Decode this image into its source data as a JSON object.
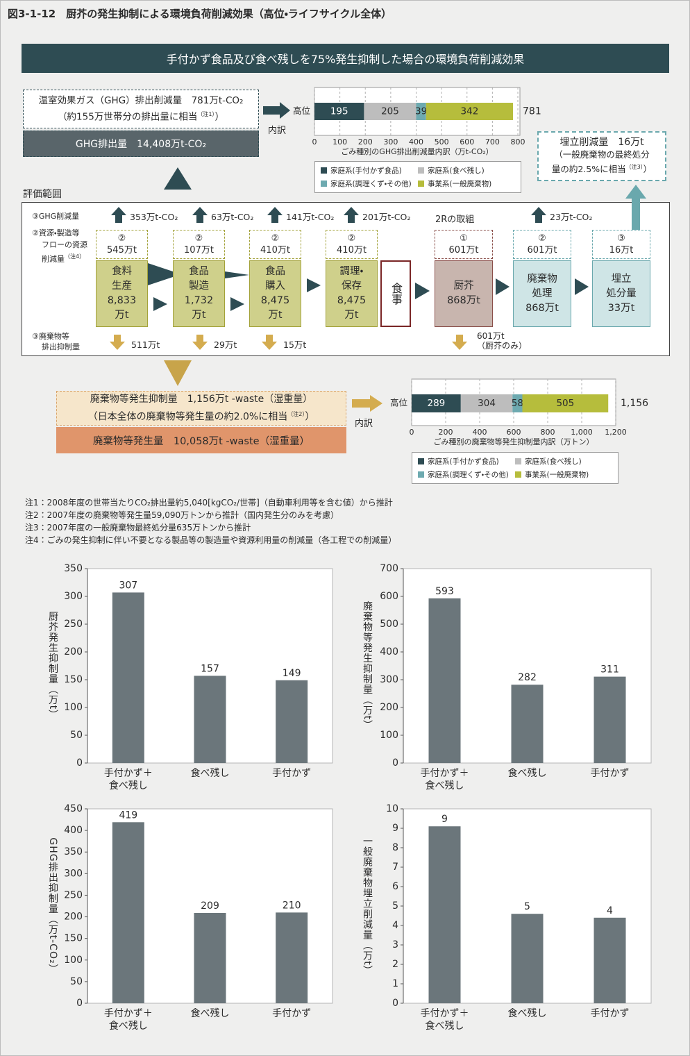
{
  "header": {
    "title": "図3-1-12　厨芥の発生抑制による環境負荷削減効果（高位・ライフサイクル全体）"
  },
  "banner": "手付かず食品及び食べ残しを75%発生抑制した場合の環境負荷削減効果",
  "ghg_summary": {
    "line1": "温室効果ガス（GHG）排出削減量　781万t-CO₂",
    "line2": "（約155万世帯分の排出量に相当",
    "note": "（注1）",
    "close": "）",
    "total": "GHG排出量　14,408万t-CO₂",
    "breakdown": "内訳"
  },
  "landfill_summary": {
    "line1": "埋立削減量　16万t",
    "line2": "（一般廃棄物の最終処分",
    "line3": "量の約2.5%に相当",
    "note": "（注3）",
    "close": "）"
  },
  "scope": {
    "title": "評価範囲",
    "row_labels": {
      "ghg": "③GHG削減量",
      "resource": [
        "②資源・製造等",
        "フローの資源",
        "削減量"
      ],
      "resource_note": "（注4）",
      "waste": [
        "③廃棄物等",
        "排出抑制量"
      ]
    },
    "ghg_reductions": [
      "353万t-CO₂",
      "63万t-CO₂",
      "141万t-CO₂",
      "201万t-CO₂"
    ],
    "ghg_reduction_disposal": "23万t-CO₂",
    "stages": [
      {
        "badge": "②",
        "amount": "545万t",
        "lines": [
          "食料",
          "生産",
          "8,833",
          "万t"
        ]
      },
      {
        "badge": "②",
        "amount": "107万t",
        "lines": [
          "食品",
          "製造",
          "1,732",
          "万t"
        ]
      },
      {
        "badge": "②",
        "amount": "410万t",
        "lines": [
          "食品",
          "購入",
          "8,475",
          "万t"
        ]
      },
      {
        "badge": "②",
        "amount": "410万t",
        "lines": [
          "調理・",
          "保存",
          "8,475",
          "万t"
        ]
      }
    ],
    "meal": "食事",
    "two_r": "2Rの取組",
    "end_stages": [
      {
        "badge": "①",
        "amount": "601万t",
        "lines": [
          "厨芥",
          "868万t"
        ]
      },
      {
        "badge": "②",
        "amount": "601万t",
        "lines": [
          "廃棄物",
          "処理",
          "868万t"
        ]
      },
      {
        "badge": "③",
        "amount": "16万t",
        "lines": [
          "埋立",
          "処分量",
          "33万t"
        ]
      }
    ],
    "waste_reductions": [
      "511万t",
      "29万t",
      "15万t"
    ],
    "waste_reduction_food": [
      "601万t",
      "（厨芥のみ）"
    ]
  },
  "waste_summary": {
    "line1": "廃棄物等発生抑制量　1,156万t -waste（湿重量）",
    "line2": "（日本全体の廃棄物等発生量の約2.0%に相当",
    "note": "（注2）",
    "close": "）",
    "total": "廃棄物等発生量　10,058万t -waste（湿重量）",
    "breakdown": "内訳"
  },
  "notes": [
    "注1：2008年度の世帯当たりCO₂排出量約5,040[kgCO₂/世帯]（自動車利用等を含む値）から推計",
    "注2：2007年度の廃棄物等発生量59,090万トンから推計（国内発生分のみを考慮）",
    "注3：2007年度の一般廃棄物最終処分量635万トンから推計",
    "注4：ごみの発生抑制に伴い不要となる製品等の製造量や資源利用量の削減量（各工程での削減量）"
  ],
  "chart_data": [
    {
      "type": "stacked_barh",
      "categories": [
        "高位"
      ],
      "series": [
        {
          "name": "家庭系(手付かず食品)",
          "color": "#2e4c53",
          "values": [
            195
          ]
        },
        {
          "name": "家庭系(食べ残し)",
          "color": "#bdbdbd",
          "values": [
            205
          ]
        },
        {
          "name": "家庭系(調理くず・その他)",
          "color": "#6eaab0",
          "values": [
            39
          ]
        },
        {
          "name": "事業系(一般廃棄物)",
          "color": "#b6bd3c",
          "values": [
            342
          ]
        }
      ],
      "total": 781,
      "xlim": [
        0,
        800
      ],
      "xticks": [
        0,
        100,
        200,
        300,
        400,
        500,
        600,
        700,
        800
      ],
      "xlabel": "ごみ種別のGHG排出削減量内訳（万t-CO₂）"
    },
    {
      "type": "stacked_barh",
      "categories": [
        "高位"
      ],
      "series": [
        {
          "name": "家庭系(手付かず食品)",
          "color": "#2e4c53",
          "values": [
            289
          ]
        },
        {
          "name": "家庭系(食べ残し)",
          "color": "#bdbdbd",
          "values": [
            304
          ]
        },
        {
          "name": "家庭系(調理くず・その他)",
          "color": "#6eaab0",
          "values": [
            58
          ]
        },
        {
          "name": "事業系(一般廃棄物)",
          "color": "#b6bd3c",
          "values": [
            505
          ]
        }
      ],
      "total": {
        "value": 1156,
        "label": "1,156"
      },
      "xlim": [
        0,
        1200
      ],
      "xticks": [
        0,
        200,
        400,
        600,
        800,
        {
          "value": 1000,
          "label": "1,000"
        },
        {
          "value": 1200,
          "label": "1,200"
        }
      ],
      "xlabel": "ごみ種別の廃棄物等発生抑制量内訳（万トン）"
    },
    {
      "type": "bar",
      "ylabel": "厨芥発生抑制量（万t）",
      "categories": [
        "手付かず＋\n食べ残し",
        "食べ残し",
        "手付かず"
      ],
      "values": [
        307,
        157,
        149
      ],
      "color": "#6b767b",
      "ylim": [
        0,
        350
      ],
      "yticks": [
        0,
        50,
        100,
        150,
        200,
        250,
        300,
        350
      ],
      "grid": false
    },
    {
      "type": "bar",
      "ylabel": "廃棄物等発生抑制量（万t）",
      "categories": [
        "手付かず＋\n食べ残し",
        "食べ残し",
        "手付かず"
      ],
      "values": [
        593,
        282,
        311
      ],
      "color": "#6b767b",
      "ylim": [
        0,
        700
      ],
      "yticks": [
        0,
        100,
        200,
        300,
        400,
        500,
        600,
        700
      ],
      "grid": false
    },
    {
      "type": "bar",
      "ylabel": "GHG排出抑制量（万t-CO₂）",
      "categories": [
        "手付かず＋\n食べ残し",
        "食べ残し",
        "手付かず"
      ],
      "values": [
        419,
        209,
        210
      ],
      "color": "#6b767b",
      "ylim": [
        0,
        450
      ],
      "yticks": [
        0,
        50,
        100,
        150,
        200,
        250,
        300,
        350,
        400,
        450
      ],
      "grid": false
    },
    {
      "type": "bar",
      "ylabel": "一般廃棄物埋立削減量（万t）",
      "categories": [
        "手付かず＋\n食べ残し",
        "食べ残し",
        "手付かず"
      ],
      "values": [
        9.1,
        4.6,
        4.4
      ],
      "value_labels": [
        "9",
        "5",
        "4"
      ],
      "color": "#6b767b",
      "ylim": [
        0,
        10
      ],
      "yticks": [
        0,
        1,
        2,
        3,
        4,
        5,
        6,
        7,
        8,
        9,
        10
      ],
      "grid": false
    }
  ]
}
